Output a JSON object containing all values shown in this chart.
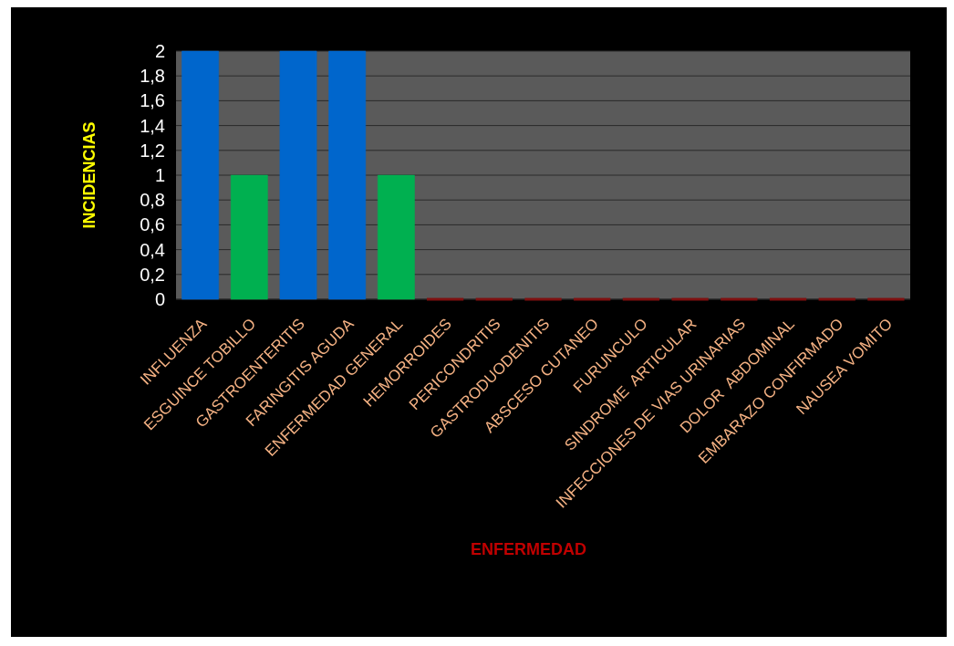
{
  "chart_data": {
    "type": "bar",
    "xlabel": "ENFERMEDAD",
    "ylabel": "INCIDENCIAS",
    "categories": [
      "INFLUENZA",
      "ESGUINCE TOBILLO",
      "GASTROENTERITIS",
      "FARINGITIS AGUDA",
      "ENFERMEDAD GENERAL",
      "HEMORROIDES",
      "PERICONDRITIS",
      "GASTRODUODENITIS",
      "ABSCESO CUTANEO",
      "FURUNCULO",
      "SINDROME  ARTICULAR",
      "INFECCIONES DE VIAS URINARIAS",
      "DOLOR  ABDOMINAL",
      "EMBARAZO CONFIRMADO",
      "NAUSEA VOMITO"
    ],
    "values": [
      2,
      1,
      2,
      2,
      1,
      0,
      0,
      0,
      0,
      0,
      0,
      0,
      0,
      0,
      0
    ],
    "colors": [
      "#0066cc",
      "#00b050",
      "#0066cc",
      "#0066cc",
      "#00b050",
      "#7f1010",
      "#7f1010",
      "#7f1010",
      "#7f1010",
      "#7f1010",
      "#7f1010",
      "#7f1010",
      "#7f1010",
      "#7f1010",
      "#7f1010"
    ],
    "ylim": [
      0,
      2
    ],
    "yticks": [
      0,
      {
        "value": 0.2,
        "label": "0,2"
      },
      {
        "value": 0.4,
        "label": "0,4"
      },
      {
        "value": 0.6,
        "label": "0,6"
      },
      {
        "value": 0.8,
        "label": "0,8"
      },
      1,
      {
        "value": 1.2,
        "label": "1,2"
      },
      {
        "value": 1.4,
        "label": "1,4"
      },
      {
        "value": 1.6,
        "label": "1,6"
      },
      {
        "value": 1.8,
        "label": "1,8"
      },
      2
    ],
    "grid": "y"
  }
}
